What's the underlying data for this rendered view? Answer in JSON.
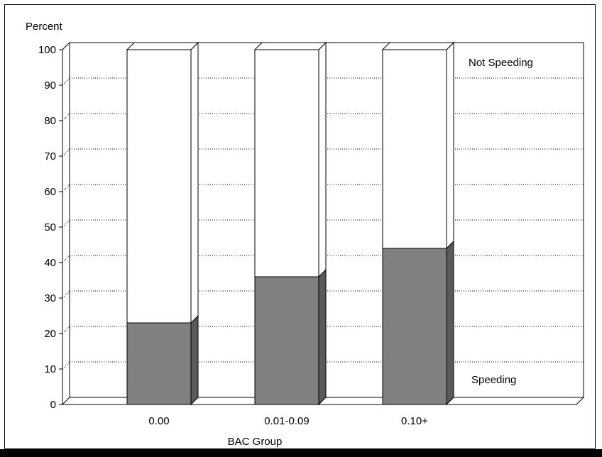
{
  "chart_data": {
    "type": "bar",
    "stacked": true,
    "three_d": true,
    "ylabel": "Percent",
    "xlabel": "BAC Group",
    "ylim": [
      0,
      100
    ],
    "yticks": [
      0,
      10,
      20,
      30,
      40,
      50,
      60,
      70,
      80,
      90,
      100
    ],
    "ytick_labels": [
      "0",
      "10",
      "20",
      "30",
      "40",
      "50",
      "60",
      "70",
      "80",
      "90",
      "100"
    ],
    "grid": "dotted",
    "categories": [
      "0.00",
      "0.01-0.09",
      "0.10+"
    ],
    "series": [
      {
        "name": "Speeding",
        "values": [
          23,
          36,
          44
        ],
        "color": "#808080"
      },
      {
        "name": "Not Speeding",
        "values": [
          77,
          64,
          56
        ],
        "color": "#ffffff"
      }
    ]
  },
  "colors": {
    "speeding": "#808080",
    "speeding_side": "#5a5a5a",
    "not_speeding": "#ffffff",
    "grid": "#000000"
  }
}
